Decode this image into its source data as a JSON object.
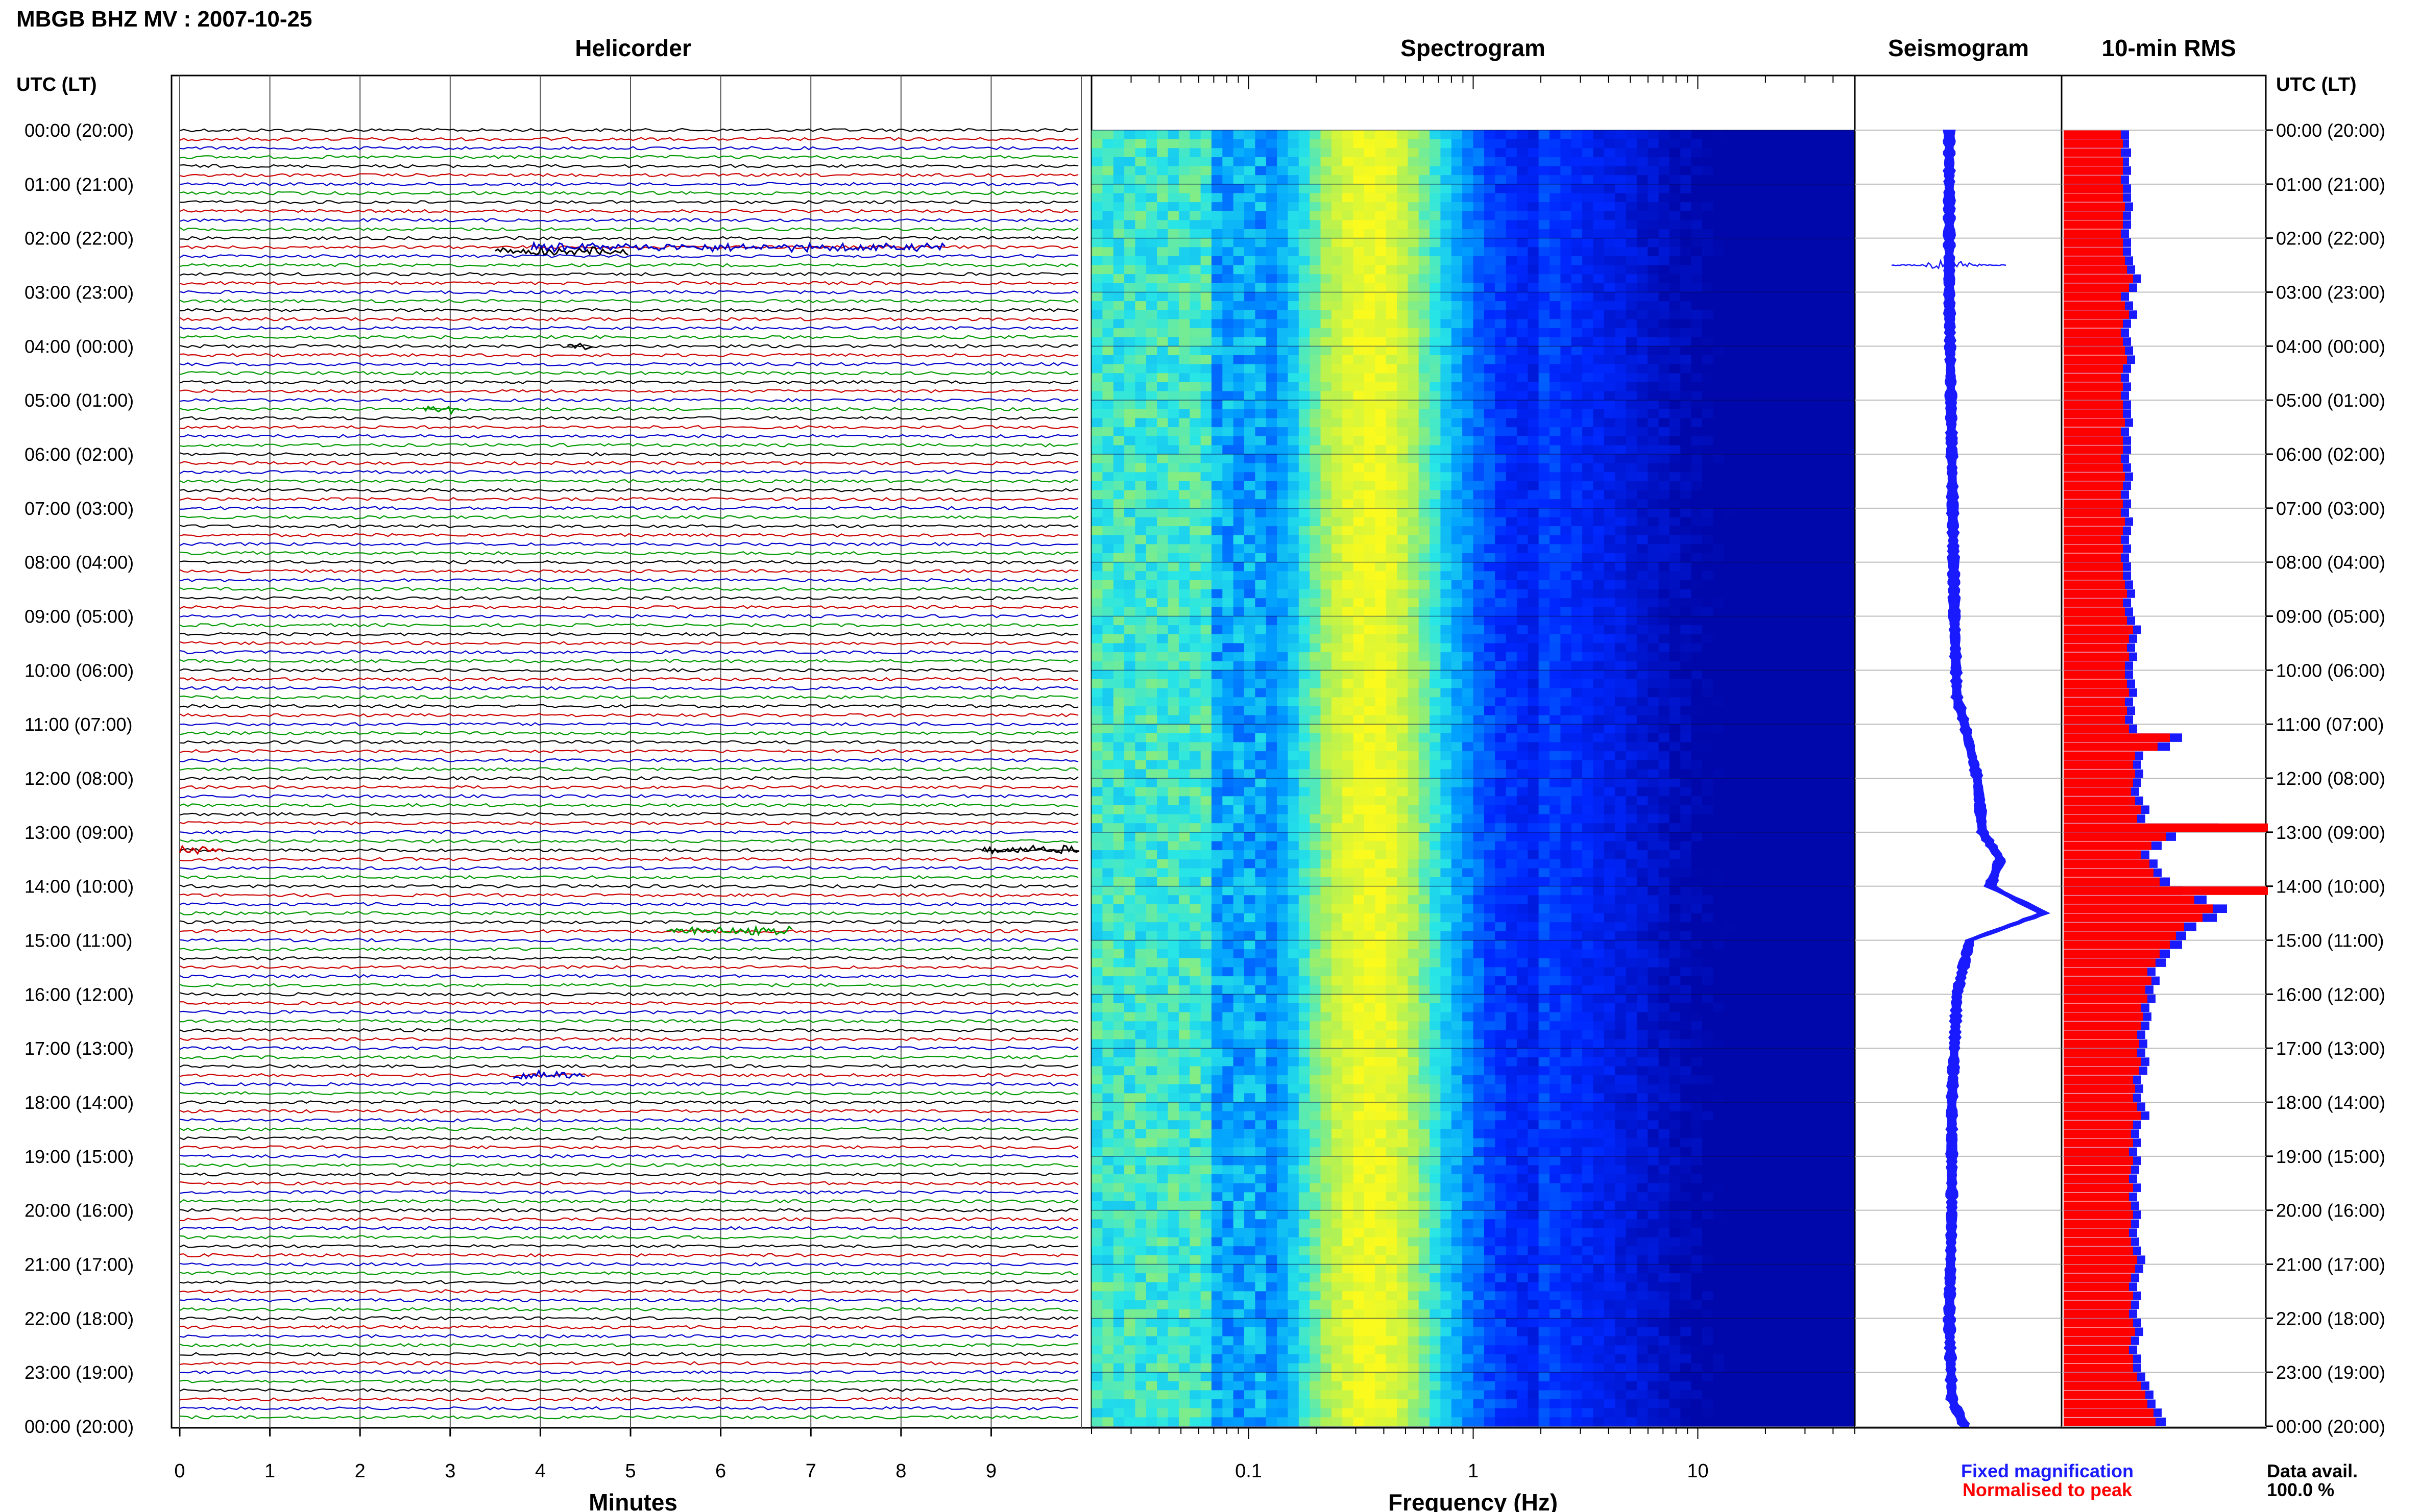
{
  "header": {
    "title": "MBGB BHZ MV : 2007-10-25",
    "timezone_label_left": "UTC (LT)",
    "timezone_label_right": "UTC (LT)"
  },
  "panels": {
    "helicorder": "Helicorder",
    "spectrogram": "Spectrogram",
    "seismogram": "Seismogram",
    "rms": "10-min RMS"
  },
  "axes": {
    "minutes_label": "Minutes",
    "minutes_ticks": [
      "0",
      "1",
      "2",
      "3",
      "4",
      "5",
      "6",
      "7",
      "8",
      "9"
    ],
    "frequency_label": "Frequency (Hz)",
    "frequency_ticks": [
      "0.1",
      "1",
      "10"
    ],
    "hour_labels": [
      "00:00 (20:00)",
      "01:00 (21:00)",
      "02:00 (22:00)",
      "03:00 (23:00)",
      "04:00 (00:00)",
      "05:00 (01:00)",
      "06:00 (02:00)",
      "07:00 (03:00)",
      "08:00 (04:00)",
      "09:00 (05:00)",
      "10:00 (06:00)",
      "11:00 (07:00)",
      "12:00 (08:00)",
      "13:00 (09:00)",
      "14:00 (10:00)",
      "15:00 (11:00)",
      "16:00 (12:00)",
      "17:00 (13:00)",
      "18:00 (14:00)",
      "19:00 (15:00)",
      "20:00 (16:00)",
      "21:00 (17:00)",
      "22:00 (18:00)",
      "23:00 (19:00)",
      "00:00 (20:00)"
    ]
  },
  "legend": {
    "fixed": "Fixed magnification",
    "normalised": "Normalised to peak",
    "availability_label": "Data avail.",
    "availability_value": "100.0 %"
  },
  "colors": {
    "trace_cycle": [
      "#000000",
      "#cc0000",
      "#0000cc",
      "#009900"
    ],
    "fixed": "#1a1aff",
    "normalised": "#ff0000",
    "spec_background": "#00009a"
  },
  "chart_data": {
    "type": "heatmap",
    "time_range_utc": [
      "00:00",
      "24:00"
    ],
    "helicorder": {
      "minutes_per_line": 10,
      "events": [
        {
          "hour": 2.25,
          "minutes": [
            3.5,
            5.0
          ],
          "color": "#000000"
        },
        {
          "hour": 2.17,
          "minutes": [
            3.9,
            8.5
          ],
          "color": "#0000cc"
        },
        {
          "hour": 4.0,
          "minutes": [
            4.3,
            4.6
          ],
          "color": "#000000"
        },
        {
          "hour": 5.17,
          "minutes": [
            2.7,
            3.1
          ],
          "color": "#009900"
        },
        {
          "hour": 13.33,
          "minutes": [
            0.0,
            0.5
          ],
          "color": "#cc0000"
        },
        {
          "hour": 13.33,
          "minutes": [
            8.9,
            10.0
          ],
          "color": "#000000"
        },
        {
          "hour": 14.83,
          "minutes": [
            5.4,
            6.8
          ],
          "color": "#009900"
        },
        {
          "hour": 17.5,
          "minutes": [
            3.7,
            4.5
          ],
          "color": "#0000cc"
        }
      ]
    },
    "spectrogram": {
      "frequency_range_hz": [
        0.02,
        50
      ],
      "peak_band_hz": [
        0.2,
        0.6
      ],
      "x_scale": "log"
    },
    "seismogram": {
      "hours": [
        0,
        2,
        2.5,
        3,
        6,
        9,
        10.5,
        11,
        12,
        13,
        13.5,
        14,
        14.5,
        15,
        16,
        18,
        20,
        22,
        23.5,
        24
      ],
      "level": [
        0.0,
        0.0,
        0.0,
        0.0,
        0.1,
        0.2,
        0.3,
        0.6,
        1.1,
        1.3,
        2.0,
        1.6,
        3.7,
        0.8,
        0.3,
        0.1,
        0.1,
        0.0,
        0.1,
        0.6
      ],
      "burst_hour": 2.5
    },
    "rms": {
      "interval_minutes": 10,
      "fixed": [
        0.32,
        0.32,
        0.33,
        0.32,
        0.33,
        0.32,
        0.33,
        0.33,
        0.34,
        0.33,
        0.33,
        0.32,
        0.33,
        0.33,
        0.34,
        0.35,
        0.38,
        0.36,
        0.32,
        0.34,
        0.36,
        0.33,
        0.32,
        0.33,
        0.34,
        0.35,
        0.33,
        0.32,
        0.33,
        0.32,
        0.33,
        0.33,
        0.34,
        0.32,
        0.33,
        0.33,
        0.32,
        0.33,
        0.34,
        0.33,
        0.32,
        0.33,
        0.32,
        0.34,
        0.33,
        0.32,
        0.33,
        0.32,
        0.33,
        0.33,
        0.34,
        0.35,
        0.33,
        0.34,
        0.35,
        0.38,
        0.36,
        0.35,
        0.36,
        0.34,
        0.34,
        0.35,
        0.36,
        0.34,
        0.35,
        0.34,
        0.36,
        0.58,
        0.52,
        0.39,
        0.38,
        0.39,
        0.38,
        0.37,
        0.39,
        0.42,
        0.4,
        0.76,
        0.55,
        0.48,
        0.42,
        0.46,
        0.48,
        0.52,
        0.58,
        0.7,
        0.8,
        0.75,
        0.65,
        0.6,
        0.58,
        0.52,
        0.5,
        0.45,
        0.47,
        0.44,
        0.45,
        0.42,
        0.43,
        0.42,
        0.4,
        0.41,
        0.4,
        0.42,
        0.41,
        0.38,
        0.39,
        0.38,
        0.4,
        0.42,
        0.38,
        0.37,
        0.38,
        0.36,
        0.38,
        0.37,
        0.36,
        0.38,
        0.36,
        0.37,
        0.38,
        0.37,
        0.36,
        0.37,
        0.38,
        0.4,
        0.39,
        0.37,
        0.36,
        0.38,
        0.37,
        0.36,
        0.38,
        0.39,
        0.37,
        0.36,
        0.38,
        0.38,
        0.4,
        0.42,
        0.44,
        0.45,
        0.48,
        0.5
      ],
      "normalised": [
        0.28,
        0.29,
        0.28,
        0.29,
        0.29,
        0.28,
        0.29,
        0.29,
        0.3,
        0.29,
        0.29,
        0.28,
        0.29,
        0.29,
        0.3,
        0.31,
        0.34,
        0.32,
        0.28,
        0.3,
        0.32,
        0.29,
        0.28,
        0.29,
        0.3,
        0.31,
        0.29,
        0.28,
        0.29,
        0.28,
        0.29,
        0.29,
        0.3,
        0.28,
        0.29,
        0.29,
        0.28,
        0.29,
        0.3,
        0.29,
        0.28,
        0.29,
        0.28,
        0.3,
        0.29,
        0.28,
        0.29,
        0.28,
        0.29,
        0.29,
        0.3,
        0.31,
        0.29,
        0.3,
        0.31,
        0.34,
        0.32,
        0.31,
        0.32,
        0.3,
        0.3,
        0.31,
        0.32,
        0.3,
        0.31,
        0.3,
        0.32,
        0.52,
        0.46,
        0.35,
        0.34,
        0.35,
        0.34,
        0.33,
        0.35,
        0.38,
        0.36,
        1.0,
        0.5,
        0.43,
        0.38,
        0.42,
        0.44,
        0.47,
        1.0,
        0.64,
        0.73,
        0.68,
        0.59,
        0.55,
        0.52,
        0.47,
        0.45,
        0.41,
        0.43,
        0.4,
        0.41,
        0.38,
        0.39,
        0.38,
        0.36,
        0.37,
        0.36,
        0.38,
        0.37,
        0.34,
        0.35,
        0.34,
        0.36,
        0.38,
        0.34,
        0.33,
        0.34,
        0.32,
        0.34,
        0.33,
        0.32,
        0.34,
        0.32,
        0.33,
        0.34,
        0.33,
        0.32,
        0.33,
        0.34,
        0.36,
        0.35,
        0.33,
        0.32,
        0.34,
        0.33,
        0.32,
        0.34,
        0.35,
        0.33,
        0.32,
        0.34,
        0.34,
        0.36,
        0.38,
        0.4,
        0.41,
        0.44,
        0.45
      ]
    }
  }
}
